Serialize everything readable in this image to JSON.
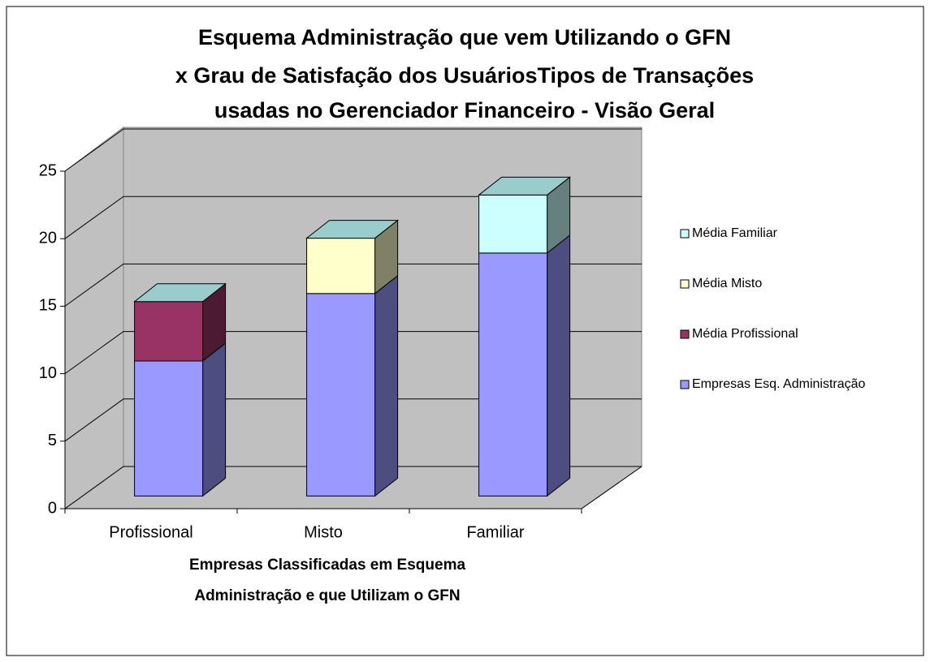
{
  "chart_data": {
    "type": "bar3d_stacked",
    "title": [
      "Esquema Administração que vem Utilizando o GFN",
      "x Grau de Satisfação dos UsuáriosTipos de Transações",
      "usadas no Gerenciador Financeiro - Visão Geral"
    ],
    "x_label": [
      "Empresas Classificadas em Esquema",
      "Administração e que Utilizam o GFN"
    ],
    "categories": [
      "Profissional",
      "Misto",
      "Familiar"
    ],
    "series": [
      {
        "name": "Empresas Esq. Administração",
        "color": "#9999ff",
        "values": [
          10,
          15,
          18
        ]
      },
      {
        "name": "Média Profissional",
        "color": "#993366",
        "values": [
          4.4,
          null,
          null
        ]
      },
      {
        "name": "Média Misto",
        "color": "#ffffcc",
        "values": [
          null,
          4.1,
          null
        ]
      },
      {
        "name": "Média Familiar",
        "color": "#ccffff",
        "values": [
          null,
          null,
          4.3
        ]
      }
    ],
    "ylim": [
      0,
      25
    ],
    "yticks": [
      0,
      5,
      10,
      15,
      20,
      25
    ],
    "grid": true
  }
}
